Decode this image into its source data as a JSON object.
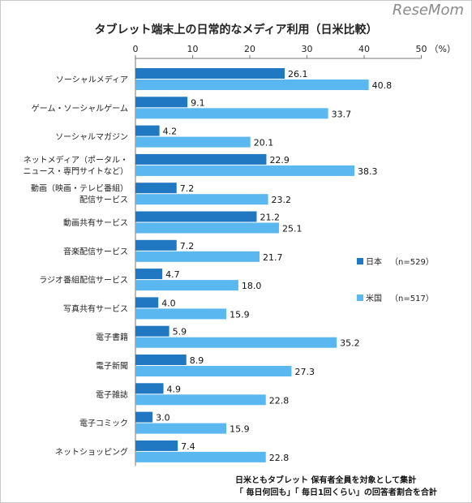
{
  "watermark": "ReseMom",
  "chart_data": {
    "type": "bar",
    "title": "タブレット端末上の日常的なメディア利用（日米比較）",
    "unit_label": "（%）",
    "xlim": [
      0,
      50
    ],
    "ticks": [
      0,
      10,
      20,
      30,
      40,
      50
    ],
    "categories": [
      [
        "ソーシャルメディア"
      ],
      [
        "ゲーム・ソーシャルゲーム"
      ],
      [
        "ソーシャルマガジン"
      ],
      [
        "ネットメディア（ポータル・",
        "ニュース・専門サイトなど）"
      ],
      [
        "動画（映画・テレビ番組）",
        "配信サービス"
      ],
      [
        "動画共有サービス"
      ],
      [
        "音楽配信サービス"
      ],
      [
        "ラジオ番組配信サービス"
      ],
      [
        "写真共有サービス"
      ],
      [
        "電子書籍"
      ],
      [
        "電子新聞"
      ],
      [
        "電子雑誌"
      ],
      [
        "電子コミック"
      ],
      [
        "ネットショッピング"
      ]
    ],
    "series": [
      {
        "name": "日本",
        "n": "（n=529）",
        "color": "#1f78c1",
        "values": [
          26.1,
          9.1,
          4.2,
          22.9,
          7.2,
          21.2,
          7.2,
          4.7,
          4.0,
          5.9,
          8.9,
          4.9,
          3.0,
          7.4
        ]
      },
      {
        "name": "米国",
        "n": "（n=517）",
        "color": "#5ab7ef",
        "values": [
          40.8,
          33.7,
          20.1,
          38.3,
          23.2,
          25.1,
          21.7,
          18.0,
          15.9,
          35.2,
          27.3,
          22.8,
          15.9,
          22.8
        ]
      }
    ],
    "grid": false,
    "legend_position": "right"
  },
  "notes": [
    "日米ともタブレット 保有者全員を対象として集計",
    "「 毎日何回も」「 毎日1回くらい」の回答者割合を合計"
  ]
}
